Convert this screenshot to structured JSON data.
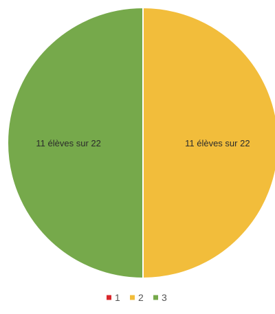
{
  "chart_data": {
    "type": "pie",
    "categories": [
      "1",
      "2",
      "3"
    ],
    "values": [
      0,
      11,
      11
    ],
    "colors": [
      "#d9262b",
      "#f2bd3b",
      "#76a94b"
    ],
    "slice_labels": [
      "",
      "11 élèves sur 22",
      "11 élèves sur 22"
    ],
    "legend": {
      "placement": "bottom",
      "entries": [
        "1",
        "2",
        "3"
      ]
    }
  }
}
